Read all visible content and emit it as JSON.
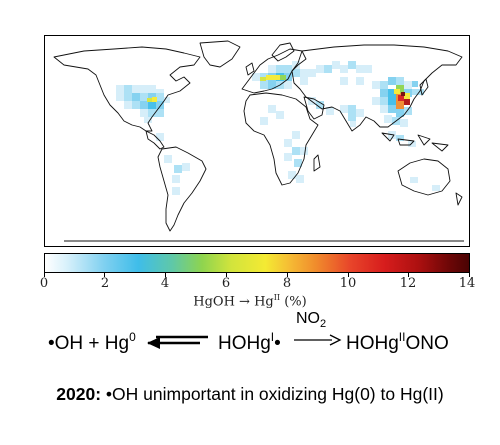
{
  "figure": {
    "colorbar": {
      "ticks": [
        "0",
        "2",
        "4",
        "6",
        "8",
        "10",
        "12",
        "14"
      ],
      "range": [
        0,
        14
      ],
      "title_lhs": "HgOH",
      "title_arrow": "→",
      "title_hg": "Hg",
      "title_ox": "II",
      "title_unit": "(%)",
      "colors": [
        "#ffffff",
        "#7fd0f0",
        "#3fbde9",
        "#8ed44f",
        "#f4ea33",
        "#f08b2c",
        "#d71d1d",
        "#4a0303"
      ]
    },
    "hotspots": [
      {
        "region": "eastern China / Korea / Japan",
        "level": "highest (~12-14%)"
      },
      {
        "region": "Europe",
        "level": "moderate (~6-9%)"
      },
      {
        "region": "eastern United States",
        "level": "moderate (~6-8%)"
      },
      {
        "region": "southern Africa, South America, India, Southeast Asia",
        "level": "low (~2-4%)"
      }
    ]
  },
  "reaction": {
    "reactant1": "•OH + Hg",
    "reactant1_ox": "0",
    "intermediate": "HOHg",
    "intermediate_ox": "I",
    "intermediate_dot": "•",
    "reagent": "NO",
    "reagent_sub": "2",
    "product_a": "HOHg",
    "product_ox": "II",
    "product_b": "ONO"
  },
  "caption": {
    "year": "2020:",
    "text": "•OH unimportant in oxidizing Hg(0) to Hg(II)"
  }
}
